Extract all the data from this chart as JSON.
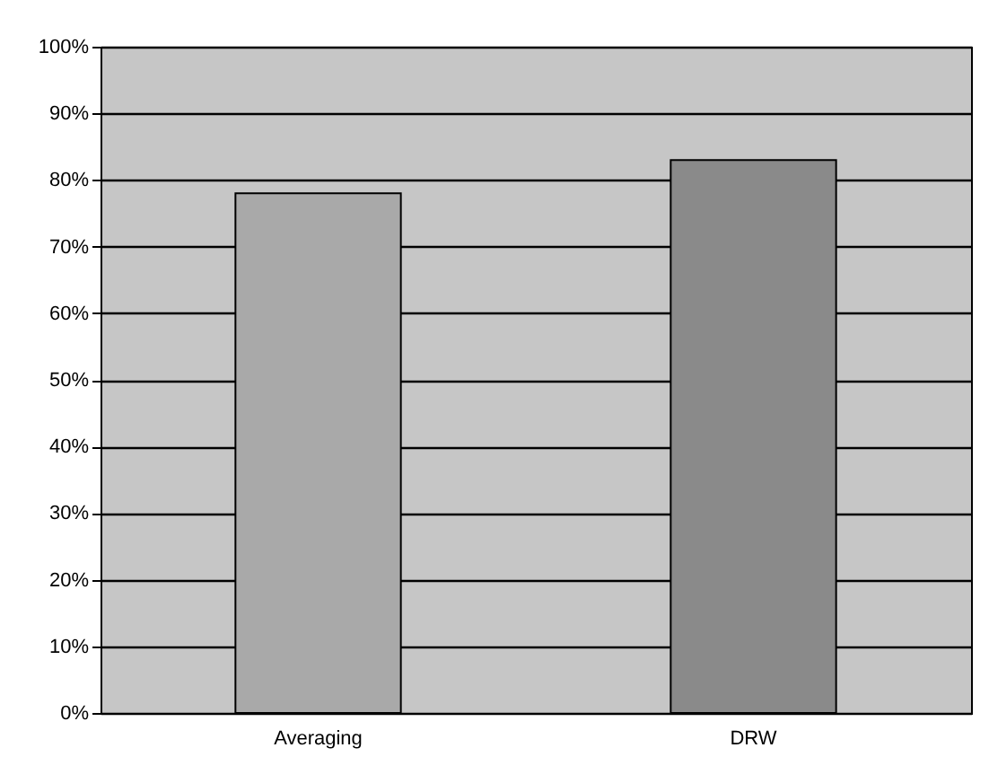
{
  "chart_data": {
    "type": "bar",
    "categories": [
      "Averaging",
      "DRW"
    ],
    "values": [
      78,
      83
    ],
    "colors": [
      "#a9a9a9",
      "#8a8a8a"
    ],
    "ylim": [
      0,
      100
    ],
    "yticks": [
      {
        "value": 0,
        "label": "0%"
      },
      {
        "value": 10,
        "label": "10%"
      },
      {
        "value": 20,
        "label": "20%"
      },
      {
        "value": 30,
        "label": "30%"
      },
      {
        "value": 40,
        "label": "40%"
      },
      {
        "value": 50,
        "label": "50%"
      },
      {
        "value": 60,
        "label": "60%"
      },
      {
        "value": 70,
        "label": "70%"
      },
      {
        "value": 80,
        "label": "80%"
      },
      {
        "value": 90,
        "label": "90%"
      },
      {
        "value": 100,
        "label": "100%"
      }
    ],
    "grid": "y",
    "legend": false
  }
}
